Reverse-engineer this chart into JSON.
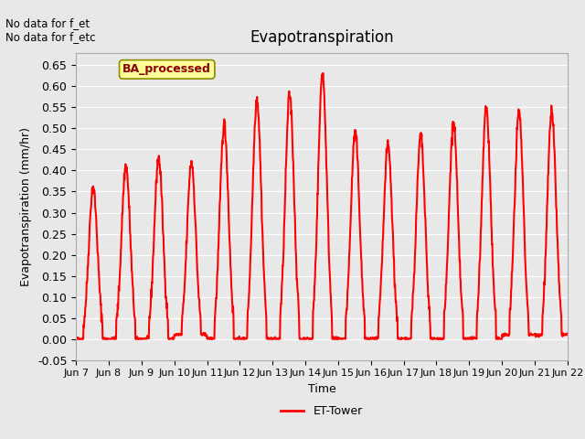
{
  "title": "Evapotranspiration",
  "ylabel": "Evapotranspiration (mm/hr)",
  "xlabel": "Time",
  "ylim": [
    -0.05,
    0.68
  ],
  "yticks": [
    -0.05,
    0.0,
    0.05,
    0.1,
    0.15,
    0.2,
    0.25,
    0.3,
    0.35,
    0.4,
    0.45,
    0.5,
    0.55,
    0.6,
    0.65
  ],
  "line_color": "#ff0000",
  "line_width": 1.5,
  "background_color": "#e8e8e8",
  "plot_bg_color": "#e8e8e8",
  "grid_color": "#ffffff",
  "annotation_text": "No data for f_et\nNo data for f_etc",
  "legend_label": "ET-Tower",
  "box_label": "BA_processed",
  "box_facecolor": "#ffff99",
  "box_edgecolor": "#8b8b00",
  "xtick_labels": [
    "Jun 7",
    "Jun 8",
    "Jun 9",
    "Jun 10",
    "Jun 11",
    "Jun 12",
    "Jun 13",
    "Jun 14",
    "Jun 15",
    "Jun 16",
    "Jun 17",
    "Jun 18",
    "Jun 19",
    "Jun 20",
    "Jun 21",
    "Jun 22"
  ],
  "num_days": 15,
  "day_peaks": [
    0.36,
    0.41,
    0.43,
    0.42,
    0.51,
    0.57,
    0.58,
    0.63,
    0.49,
    0.46,
    0.48,
    0.51,
    0.55,
    0.54,
    0.54
  ],
  "night_mins": [
    0.0,
    0.0,
    0.0,
    0.01,
    0.0,
    0.0,
    0.0,
    0.0,
    0.0,
    0.0,
    0.0,
    0.0,
    0.0,
    0.01,
    0.01
  ]
}
